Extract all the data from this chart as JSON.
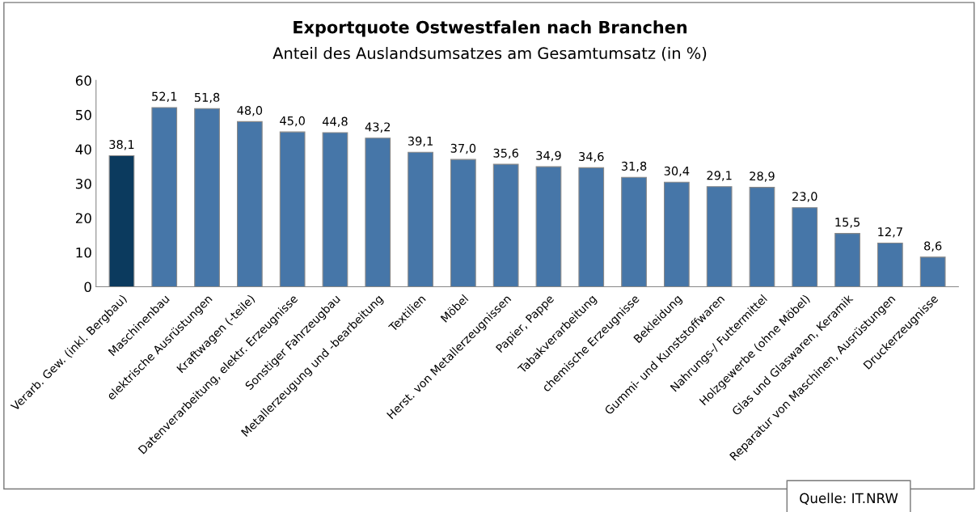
{
  "chart_data": {
    "type": "bar",
    "title": "Exportquote Ostwestfalen nach Branchen",
    "subtitle": "Anteil des Auslandsumsatzes am Gesamtumsatz (in %)",
    "categories": [
      "Verarb. Gew. (inkl. Bergbau)",
      "Maschinenbau",
      "elektrische Ausrüstungen",
      "Kraftwagen (-teile)",
      "Datenverarbeitung, elektr. Erzeugnisse",
      "Sonstiger Fahrzeugbau",
      "Metallerzeugung und -bearbeitung",
      "Textilien",
      "Möbel",
      "Herst. von Metallerzeugnissen",
      "Papier, Pappe",
      "Tabakverarbeitung",
      "chemische Erzeugnisse",
      "Bekleidung",
      "Gummi- und Kunststoffwaren",
      "Nahrungs-/ Futtermittel",
      "Holzgewerbe (ohne Möbel)",
      "Glas und Glaswaren, Keramik",
      "Reparatur von Maschinen, Ausrüstungen",
      "Druckerzeugnisse"
    ],
    "values": [
      38.1,
      52.1,
      51.8,
      48.0,
      45.0,
      44.8,
      43.2,
      39.1,
      37.0,
      35.6,
      34.9,
      34.6,
      31.8,
      30.4,
      29.1,
      28.9,
      23.0,
      15.5,
      12.7,
      8.6
    ],
    "value_labels": [
      "38,1",
      "52,1",
      "51,8",
      "48,0",
      "45,0",
      "44,8",
      "43,2",
      "39,1",
      "37,0",
      "35,6",
      "34,9",
      "34,6",
      "31,8",
      "30,4",
      "29,1",
      "28,9",
      "23,0",
      "15,5",
      "12,7",
      "8,6"
    ],
    "colors": [
      "#0b3a5e",
      "#4676a8",
      "#4676a8",
      "#4676a8",
      "#4676a8",
      "#4676a8",
      "#4676a8",
      "#4676a8",
      "#4676a8",
      "#4676a8",
      "#4676a8",
      "#4676a8",
      "#4676a8",
      "#4676a8",
      "#4676a8",
      "#4676a8",
      "#4676a8",
      "#4676a8",
      "#4676a8",
      "#4676a8"
    ],
    "ylim": [
      0,
      60
    ],
    "yticks": [
      0,
      10,
      20,
      30,
      40,
      50,
      60
    ],
    "grid": false,
    "legend": false,
    "annotations": [
      "Quelle: IT.NRW"
    ]
  }
}
